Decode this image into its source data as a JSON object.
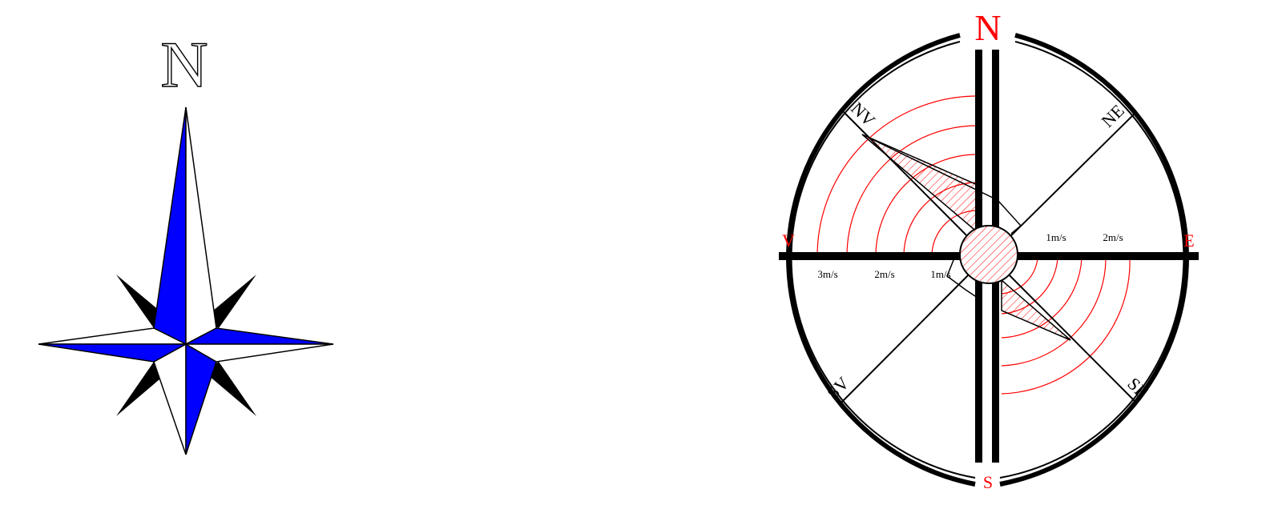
{
  "left_compass": {
    "north_label": "N",
    "colors": {
      "primary": "#0000ff",
      "secondary": "#000000",
      "light": "#ffffff"
    }
  },
  "right_compass": {
    "cardinals": {
      "north": "N",
      "south": "S",
      "east": "E",
      "west": "V"
    },
    "diagonals": {
      "ne": "NE",
      "nw": "NV",
      "se": "SE",
      "sw": "SV"
    },
    "speed_labels": {
      "west": [
        "3m/s",
        "2m/s",
        "1m/s"
      ],
      "east": [
        "1m/s",
        "2m/s"
      ]
    },
    "colors": {
      "label_red": "#ff0000",
      "hatch_red": "#ff0000",
      "ink": "#000000"
    }
  }
}
